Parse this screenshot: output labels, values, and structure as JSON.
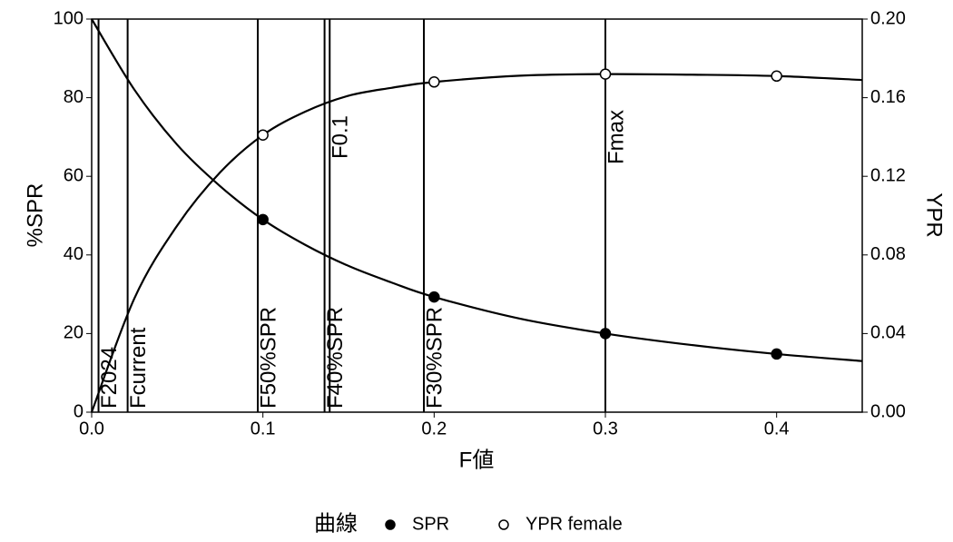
{
  "chart_data": {
    "type": "line",
    "x_label": "F値",
    "y_label": "%SPR",
    "y2_label": "YPR",
    "legend_title": "曲線",
    "legend": "bottom",
    "xlim": [
      0,
      0.45
    ],
    "ylim": [
      0,
      100
    ],
    "y2lim": [
      0,
      0.2
    ],
    "xticks": [
      {
        "value": 0,
        "label": "0.0"
      },
      0.1,
      0.2,
      0.3,
      0.4
    ],
    "yticks": [
      0,
      20,
      40,
      60,
      80,
      100
    ],
    "y2ticks": [
      {
        "value": 0,
        "label": "0.00"
      },
      0.04,
      0.08,
      0.12,
      0.16,
      {
        "value": 0.2,
        "label": "0.20"
      }
    ],
    "series": [
      {
        "name": "SPR",
        "color": "#000000",
        "marker": "filled",
        "axis": "y",
        "x": [
          0,
          0.025,
          0.05,
          0.075,
          0.1,
          0.125,
          0.15,
          0.175,
          0.2,
          0.25,
          0.3,
          0.35,
          0.4,
          0.45
        ],
        "values": [
          100,
          82,
          68,
          57.5,
          49,
          42.5,
          37.2,
          33,
          29.3,
          23.8,
          20,
          17.1,
          14.8,
          13
        ],
        "point_x": [
          0.1,
          0.2,
          0.3,
          0.4
        ],
        "point_values": [
          49,
          29.3,
          20,
          14.8
        ]
      },
      {
        "name": "YPR female",
        "color": "#000000",
        "marker": "open",
        "axis": "y2",
        "x": [
          0,
          0.025,
          0.05,
          0.075,
          0.1,
          0.125,
          0.15,
          0.175,
          0.2,
          0.25,
          0.3,
          0.35,
          0.4,
          0.45
        ],
        "values": [
          0,
          0.058,
          0.095,
          0.122,
          0.141,
          0.153,
          0.161,
          0.165,
          0.168,
          0.1712,
          0.172,
          0.1717,
          0.171,
          0.169
        ],
        "point_x": [
          0.1,
          0.2,
          0.3,
          0.4
        ],
        "point_values": [
          0.141,
          0.168,
          0.172,
          0.171
        ]
      }
    ],
    "reference_lines": [
      {
        "label": "F2024",
        "x": 0.004,
        "label_position": "bottom"
      },
      {
        "label": "Fcurrent",
        "x": 0.021,
        "label_position": "bottom"
      },
      {
        "label": "F50%SPR",
        "x": 0.097,
        "label_position": "bottom"
      },
      {
        "label": "F40%SPR",
        "x": 0.136,
        "label_position": "bottom"
      },
      {
        "label": "F0.1",
        "x": 0.139,
        "label_position": "top"
      },
      {
        "label": "F30%SPR",
        "x": 0.194,
        "label_position": "bottom"
      },
      {
        "label": "Fmax",
        "x": 0.3,
        "label_position": "top"
      }
    ]
  }
}
